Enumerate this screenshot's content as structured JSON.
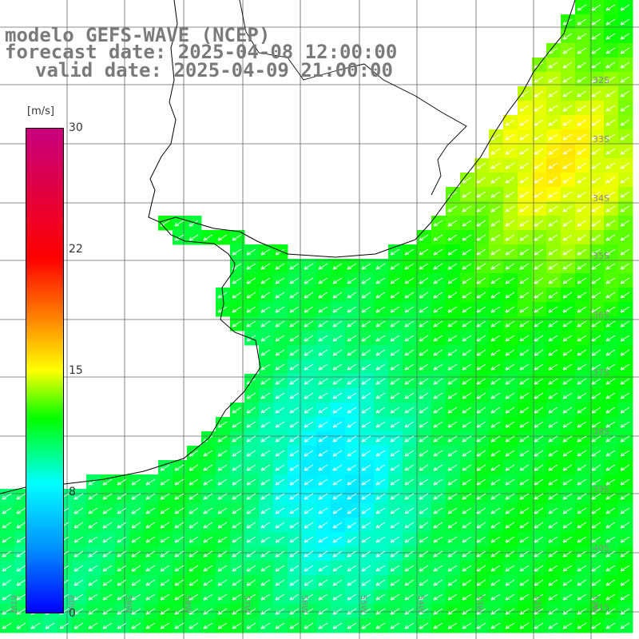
{
  "title": {
    "line1": "modelo GEFS-WAVE (NCEP)",
    "line2": "forecast date: 2025-04-08 12:00:00",
    "line3": "valid date: 2025-04-09 21:00:00"
  },
  "legend": {
    "unit": "[m/s]",
    "ticks": [
      "30",
      "22",
      "15",
      "8",
      "0"
    ],
    "colors": [
      "#c6007e",
      "#ff0000",
      "#ff8c00",
      "#ffff00",
      "#00ff00",
      "#00ffff",
      "#0090ff",
      "#0000ff"
    ]
  },
  "map": {
    "lat_labels": [
      "32S",
      "33S",
      "34S",
      "35S",
      "36S",
      "37S",
      "38S",
      "39S",
      "40S",
      "41S"
    ],
    "lon_labels": [
      "61W",
      "60W",
      "59W",
      "58W",
      "57W",
      "56W",
      "55W",
      "54W",
      "53W",
      "52W",
      "51W"
    ],
    "wind_direction": "from NE toward SW",
    "wind_speed_range_ms": [
      6,
      14
    ]
  }
}
